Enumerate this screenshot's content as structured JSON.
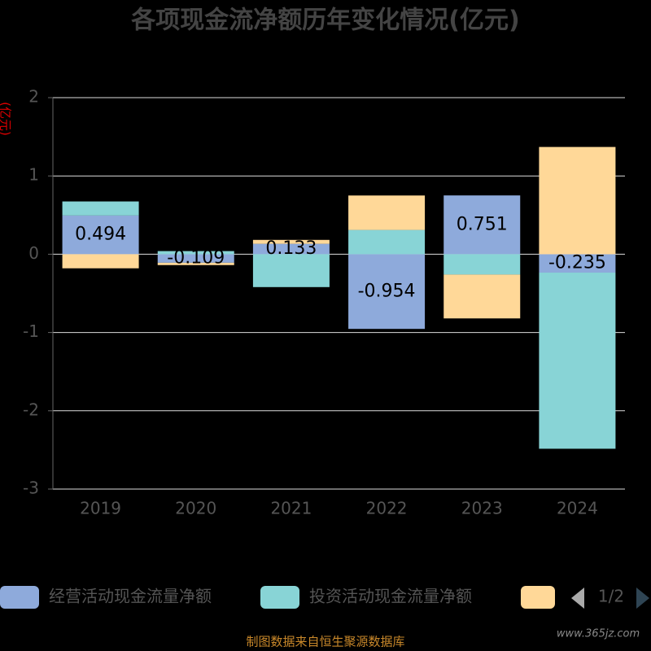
{
  "chart_data": {
    "type": "bar",
    "stacked": true,
    "title": "各项现金流净额历年变化情况(亿元)",
    "y_label": "(亿元)",
    "categories": [
      "2019",
      "2020",
      "2021",
      "2022",
      "2023",
      "2024"
    ],
    "series": [
      {
        "name": "经营活动现金流量净额",
        "color": "#8eaadb",
        "values": [
          0.494,
          -0.109,
          0.133,
          -0.954,
          0.751,
          -0.235
        ],
        "labels": true
      },
      {
        "name": "投资活动现金流量净额",
        "color": "#88d4d6",
        "values": [
          0.18,
          0.04,
          -0.42,
          0.31,
          -0.26,
          -2.25
        ]
      },
      {
        "color": "#ffd898",
        "values": [
          -0.18,
          -0.03,
          0.05,
          0.44,
          -0.56,
          1.37
        ]
      }
    ],
    "ylim": [
      -3,
      2
    ],
    "yticks": [
      -3,
      -2,
      -1,
      0,
      1,
      2
    ],
    "grid": true,
    "legend_page": "1/2",
    "source": "制图数据来自恒生聚源数据库",
    "watermark": "www.365jz.com"
  }
}
